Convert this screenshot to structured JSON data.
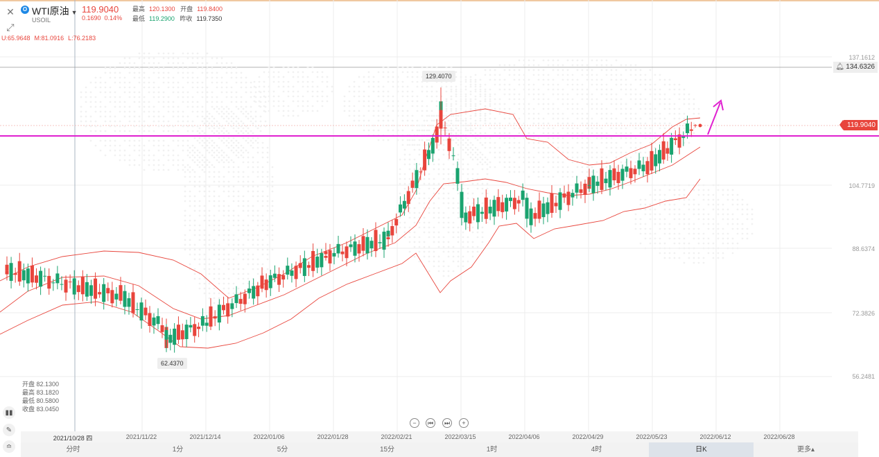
{
  "symbol": {
    "name": "WTI原油",
    "code": "USOIL",
    "price": "119.9040",
    "change": "0.1690",
    "change_pct": "0.14%",
    "high_label": "最高",
    "high": "120.1300",
    "open_label": "开盘",
    "open": "119.8400",
    "low_label": "最低",
    "low": "119.2900",
    "prev_close_label": "昨收",
    "prev_close": "119.7350"
  },
  "boll": {
    "upper": "U:65.9648",
    "middle": "M:81.0916",
    "lower": "L:76.2183"
  },
  "y_axis": {
    "ticks": [
      "137.1612",
      "104.7719",
      "88.6374",
      "72.3826",
      "56.2481"
    ],
    "alert_price": "134.6326",
    "current_price": "119.9040"
  },
  "callouts": {
    "max": "129.4070",
    "min": "62.4370"
  },
  "hover_ohlc": {
    "open": "开盘 82.1300",
    "high": "最高 83.1820",
    "low": "最低 80.5800",
    "close": "收盘 83.0450"
  },
  "date_axis": {
    "labels": [
      "2021/10/28 四",
      "2021/11/22",
      "2021/12/14",
      "2022/01/06",
      "2022/01/28",
      "2022/02/21",
      "2022/03/15",
      "2022/04/06",
      "2022/04/29",
      "2022/05/23",
      "2022/06/12",
      "2022/06/28"
    ]
  },
  "periods": [
    "分时",
    "1分",
    "5分",
    "15分",
    "1时",
    "4时",
    "日K",
    "更多▴"
  ],
  "active_period": "日K",
  "colors": {
    "up": "#e8453c",
    "down": "#1aa36f",
    "boll": "#e8453c",
    "hline": "#e020d0"
  },
  "icons": {
    "close": "close-icon",
    "expand": "expand-icon",
    "bell": "bell-icon",
    "zoom_out": "zoom-out-icon",
    "zoom_in": "zoom-in-icon",
    "prev": "step-back-icon",
    "next": "step-forward-icon",
    "indicator": "indicator-icon",
    "draw": "pencil-icon",
    "compare": "compare-icon"
  },
  "chart_data": {
    "type": "candlestick",
    "series": [
      {
        "date": "2021/10/28",
        "open": 82.13,
        "high": 83.18,
        "low": 80.58,
        "close": 83.05
      },
      {
        "date": "2021/11/22",
        "open": 76.5,
        "high": 78.2,
        "low": 74.9,
        "close": 76.8
      },
      {
        "date": "2021/12/01",
        "open": 68.0,
        "high": 69.5,
        "low": 62.44,
        "close": 65.6
      },
      {
        "date": "2021/12/14",
        "open": 70.2,
        "high": 72.0,
        "low": 69.3,
        "close": 70.9
      },
      {
        "date": "2022/01/06",
        "open": 79.1,
        "high": 80.3,
        "low": 78.2,
        "close": 79.5
      },
      {
        "date": "2022/01/28",
        "open": 86.3,
        "high": 87.8,
        "low": 85.6,
        "close": 86.8
      },
      {
        "date": "2022/02/21",
        "open": 91.0,
        "high": 92.3,
        "low": 89.1,
        "close": 91.5
      },
      {
        "date": "2022/03/08",
        "open": 119.0,
        "high": 129.41,
        "low": 115.0,
        "close": 123.7
      },
      {
        "date": "2022/03/15",
        "open": 103.0,
        "high": 105.0,
        "low": 94.5,
        "close": 96.4
      },
      {
        "date": "2022/04/06",
        "open": 101.5,
        "high": 102.7,
        "low": 94.0,
        "close": 96.2
      },
      {
        "date": "2022/04/29",
        "open": 104.7,
        "high": 106.0,
        "low": 103.1,
        "close": 104.6
      },
      {
        "date": "2022/05/23",
        "open": 110.0,
        "high": 110.7,
        "low": 108.6,
        "close": 110.3
      },
      {
        "date": "2022/06/07",
        "open": 119.84,
        "high": 120.13,
        "low": 119.29,
        "close": 119.9
      }
    ],
    "ylim": [
      56.2481,
      137.1612
    ],
    "yticks": [
      137.1612,
      104.7719,
      88.6374,
      72.3826,
      56.2481
    ],
    "grid": true
  }
}
